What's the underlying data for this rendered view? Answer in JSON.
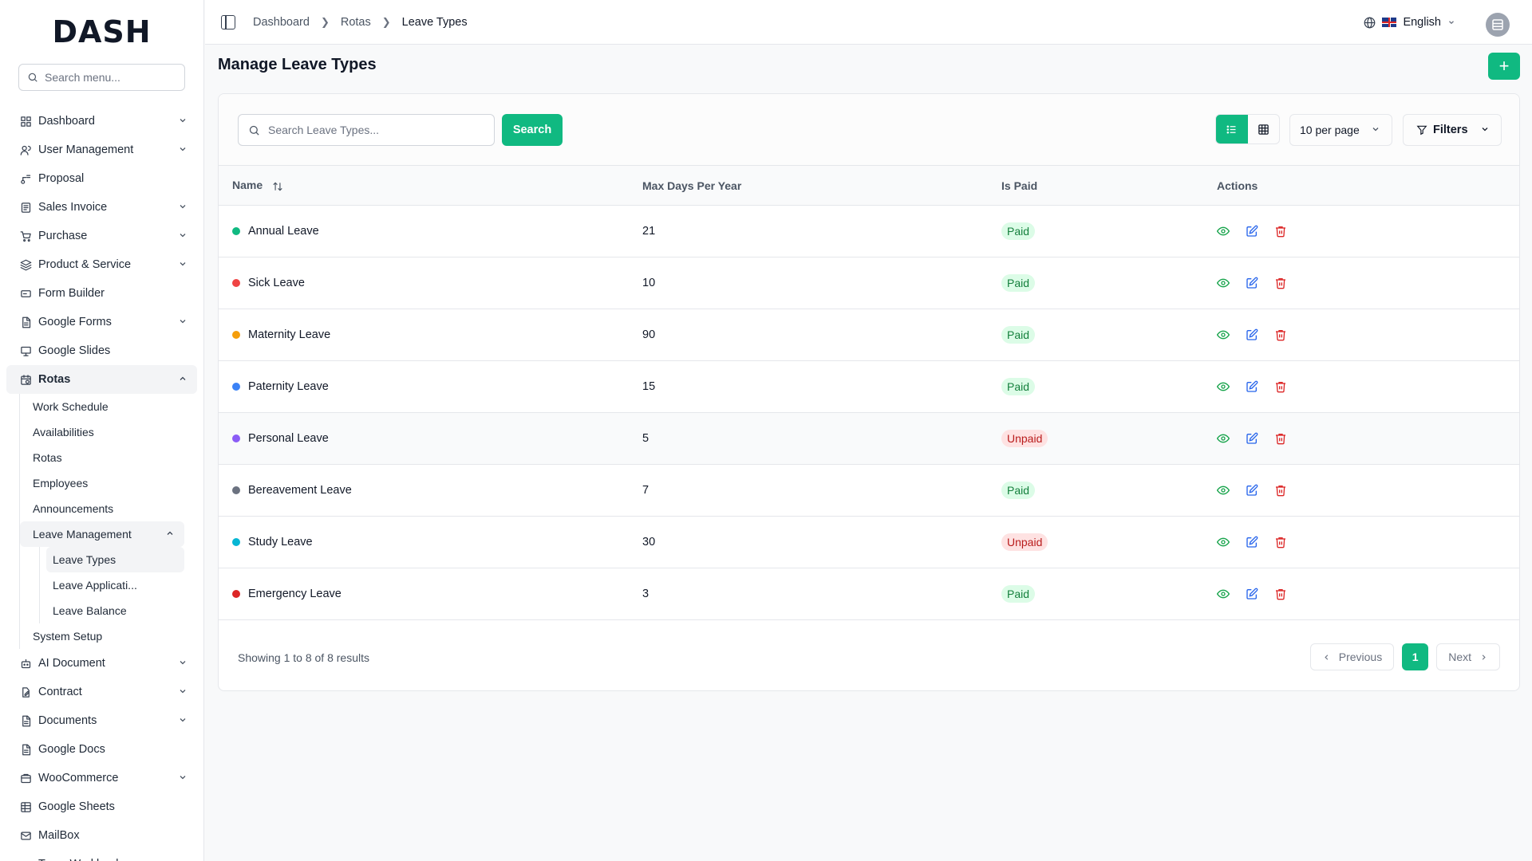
{
  "app": {
    "logo": "DASH"
  },
  "sidebar": {
    "search_placeholder": "Search menu...",
    "items": [
      {
        "label": "Dashboard",
        "icon": "grid-icon",
        "chevron": true
      },
      {
        "label": "User Management",
        "icon": "users-icon",
        "chevron": true
      },
      {
        "label": "Proposal",
        "icon": "proposal-icon",
        "chevron": false
      },
      {
        "label": "Sales Invoice",
        "icon": "invoice-icon",
        "chevron": true
      },
      {
        "label": "Purchase",
        "icon": "cart-icon",
        "chevron": true
      },
      {
        "label": "Product & Service",
        "icon": "layers-icon",
        "chevron": true
      },
      {
        "label": "Form Builder",
        "icon": "form-icon",
        "chevron": false
      },
      {
        "label": "Google Forms",
        "icon": "document-icon",
        "chevron": true
      },
      {
        "label": "Google Slides",
        "icon": "presentation-icon",
        "chevron": false
      },
      {
        "label": "Rotas",
        "icon": "calendar-clock-icon",
        "chevron": true,
        "active": true
      }
    ],
    "rotas_sub": [
      "Work Schedule",
      "Availabilities",
      "Rotas",
      "Employees",
      "Announcements"
    ],
    "leave_management": "Leave Management",
    "leave_sub": [
      "Leave Types",
      "Leave Applicati...",
      "Leave Balance"
    ],
    "system_setup": "System Setup",
    "items_after": [
      {
        "label": "AI Document",
        "icon": "bot-icon",
        "chevron": true
      },
      {
        "label": "Contract",
        "icon": "contract-icon",
        "chevron": true
      },
      {
        "label": "Documents",
        "icon": "document-icon",
        "chevron": true
      },
      {
        "label": "Google Docs",
        "icon": "document-icon",
        "chevron": false
      },
      {
        "label": "WooCommerce",
        "icon": "store-icon",
        "chevron": true
      },
      {
        "label": "Google Sheets",
        "icon": "sheet-icon",
        "chevron": false
      },
      {
        "label": "MailBox",
        "icon": "mail-icon",
        "chevron": false
      },
      {
        "label": "Team Workload",
        "icon": "gauge-icon",
        "chevron": true
      }
    ]
  },
  "header": {
    "breadcrumb": [
      "Dashboard",
      "Rotas",
      "Leave Types"
    ],
    "language": "English"
  },
  "page": {
    "title": "Manage Leave Types",
    "add_label": "+"
  },
  "toolbar": {
    "search_placeholder": "Search Leave Types...",
    "search_button": "Search",
    "per_page": "10 per page",
    "filters": "Filters"
  },
  "table": {
    "columns": [
      "Name",
      "Max Days Per Year",
      "Is Paid",
      "Actions"
    ],
    "rows": [
      {
        "name": "Annual Leave",
        "color": "#10b981",
        "max_days": "21",
        "is_paid": "Paid"
      },
      {
        "name": "Sick Leave",
        "color": "#ef4444",
        "max_days": "10",
        "is_paid": "Paid"
      },
      {
        "name": "Maternity Leave",
        "color": "#f59e0b",
        "max_days": "90",
        "is_paid": "Paid"
      },
      {
        "name": "Paternity Leave",
        "color": "#3b82f6",
        "max_days": "15",
        "is_paid": "Paid"
      },
      {
        "name": "Personal Leave",
        "color": "#8b5cf6",
        "max_days": "5",
        "is_paid": "Unpaid"
      },
      {
        "name": "Bereavement Leave",
        "color": "#6b7280",
        "max_days": "7",
        "is_paid": "Paid"
      },
      {
        "name": "Study Leave",
        "color": "#06b6d4",
        "max_days": "30",
        "is_paid": "Unpaid"
      },
      {
        "name": "Emergency Leave",
        "color": "#dc2626",
        "max_days": "3",
        "is_paid": "Paid"
      }
    ]
  },
  "pagination": {
    "summary": "Showing 1 to 8 of 8 results",
    "previous": "Previous",
    "current_page": "1",
    "next": "Next"
  },
  "colors": {
    "accent": "#10b981",
    "view": "#16a34a",
    "edit": "#2563eb",
    "delete": "#dc2626"
  }
}
